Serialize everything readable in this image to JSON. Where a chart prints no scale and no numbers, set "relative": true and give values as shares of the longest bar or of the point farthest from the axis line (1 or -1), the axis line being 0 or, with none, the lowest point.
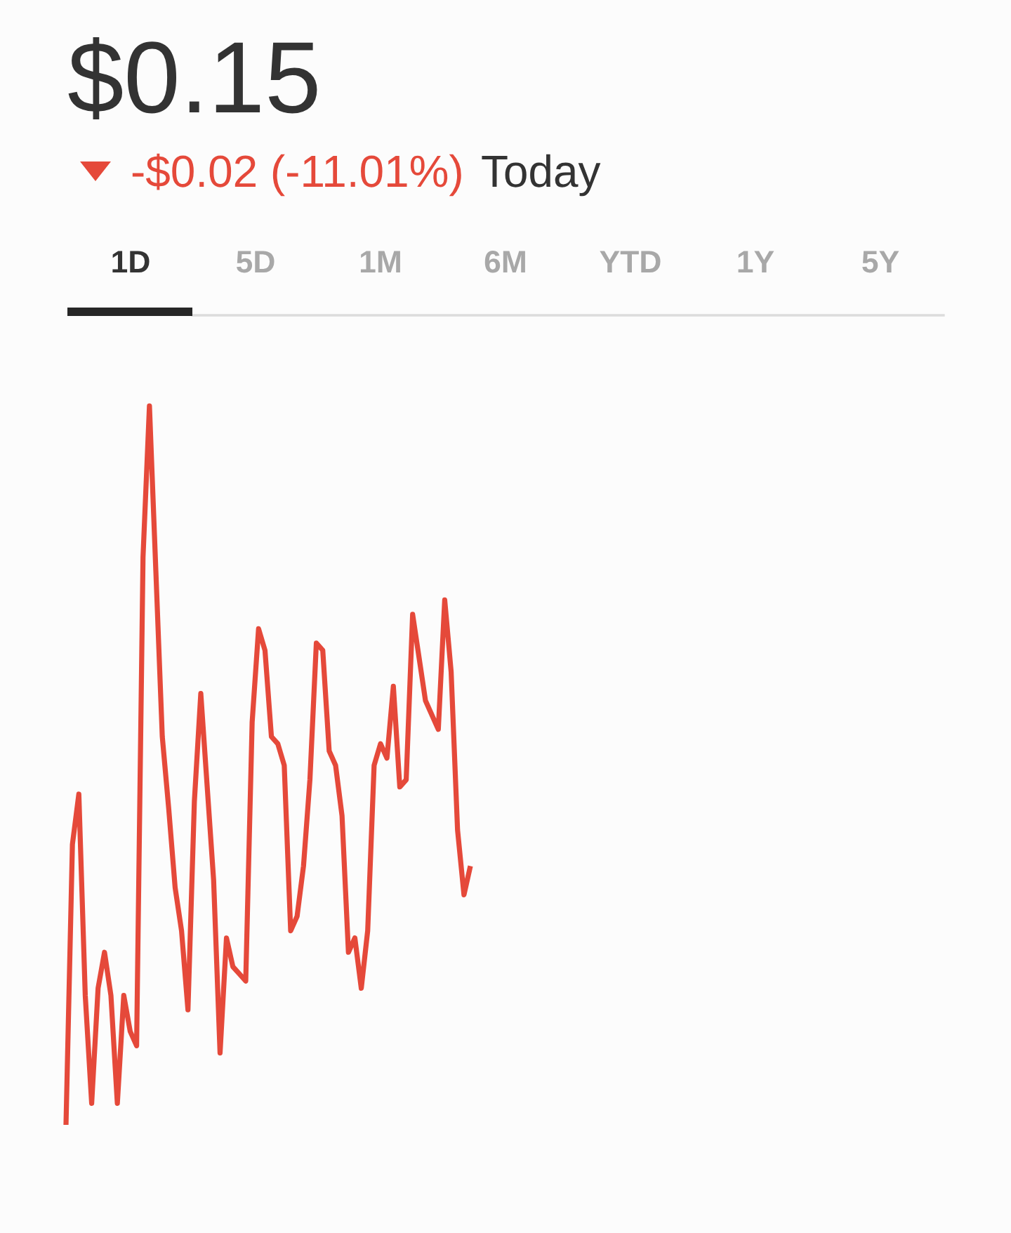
{
  "chart_data": {
    "type": "line",
    "title": "$0.15",
    "subtitle": "-$0.02 (-11.01%)",
    "annotations": [
      "Today",
      "1D",
      "5D",
      "1M",
      "6M",
      "YTD",
      "1Y",
      "5Y"
    ],
    "relative": true,
    "categories": [
      null,
      null,
      null,
      null,
      null,
      null,
      null,
      null,
      null,
      null,
      null,
      null,
      null,
      null,
      null,
      null,
      null,
      null,
      null,
      null,
      null,
      null,
      null,
      null,
      null,
      null,
      null,
      null,
      null,
      null,
      null,
      null,
      null,
      null,
      null,
      null,
      null,
      null,
      null,
      null,
      null,
      null,
      null,
      null,
      null,
      null,
      null,
      null,
      null,
      null,
      null,
      null,
      null,
      null,
      null,
      null,
      null,
      null,
      null,
      null,
      null,
      null,
      null,
      null
    ],
    "series": [
      {
        "color": "#e5493a",
        "values": [
          0,
          0.39,
          0.46,
          0.18,
          0.03,
          0.19,
          0.24,
          0.18,
          0.03,
          0.18,
          0.13,
          0.11,
          0.79,
          1,
          0.77,
          0.54,
          0.44,
          0.33,
          0.27,
          0.16,
          0.45,
          0.6,
          0.47,
          0.34,
          0.1,
          0.26,
          0.22,
          0.21,
          0.2,
          0.56,
          0.69,
          0.66,
          0.54,
          0.53,
          0.5,
          0.27,
          0.29,
          0.36,
          0.48,
          0.67,
          0.66,
          0.52,
          0.5,
          0.43,
          0.24,
          0.26,
          0.19,
          0.27,
          0.5,
          0.53,
          0.51,
          0.61,
          0.47,
          0.48,
          0.71,
          0.65,
          0.59,
          0.57,
          0.55,
          0.73,
          0.63,
          0.41,
          0.32,
          0.36
        ]
      }
    ]
  }
}
